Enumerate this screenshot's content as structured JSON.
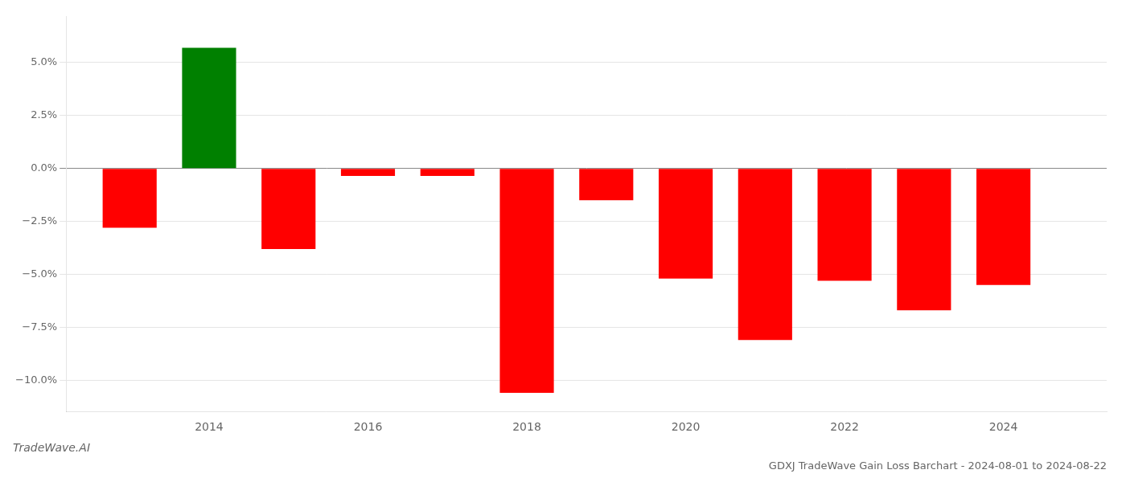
{
  "chart_data": {
    "type": "bar",
    "title": "GDXJ TradeWave Gain Loss Barchart - 2024-08-01 to 2024-08-22",
    "annotations": [
      {
        "text": "TradeWave.AI"
      }
    ],
    "x": [
      2013,
      2014,
      2015,
      2016,
      2017,
      2018,
      2019,
      2020,
      2021,
      2022,
      2023,
      2024
    ],
    "values": [
      -2.8,
      5.7,
      -3.8,
      -0.35,
      -0.35,
      -10.6,
      -1.5,
      -5.2,
      -8.1,
      -5.3,
      -6.7,
      -5.5
    ],
    "colors": [
      "#ff0000",
      "#008000",
      "#ff0000",
      "#ff0000",
      "#ff0000",
      "#ff0000",
      "#ff0000",
      "#ff0000",
      "#ff0000",
      "#ff0000",
      "#ff0000",
      "#ff0000"
    ],
    "xlim": [
      2012.2,
      2025.3
    ],
    "xticks": [
      2014,
      2016,
      2018,
      2020,
      2022,
      2024
    ],
    "ylim": [
      -11.5,
      7.2
    ],
    "yticks": [
      {
        "value": 5.0,
        "label": "5.0%"
      },
      {
        "value": 2.5,
        "label": "2.5%"
      },
      {
        "value": 0.0,
        "label": "0.0%"
      },
      {
        "value": -2.5,
        "label": "−2.5%"
      },
      {
        "value": -5.0,
        "label": "−5.0%"
      },
      {
        "value": -7.5,
        "label": "−7.5%"
      },
      {
        "value": -10.0,
        "label": "−10.0%"
      }
    ],
    "grid": true
  }
}
